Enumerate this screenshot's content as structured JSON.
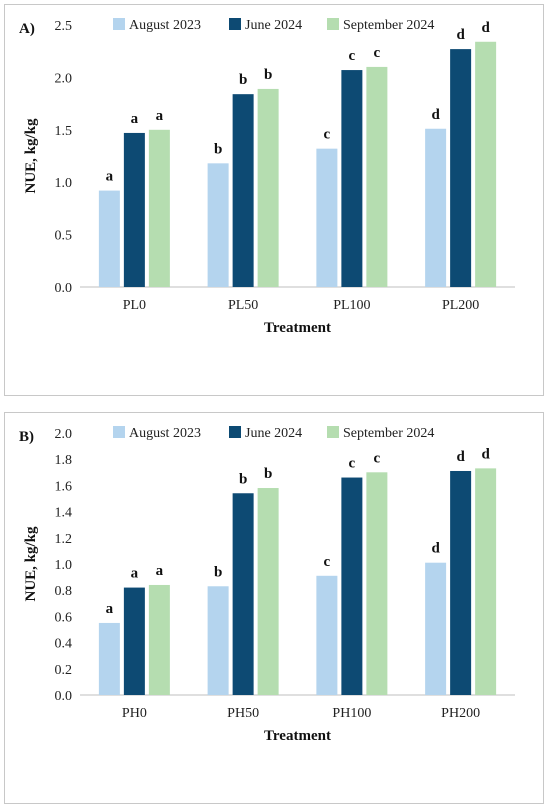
{
  "chart_data": [
    {
      "type": "bar",
      "panel_label": "A)",
      "categories": [
        "PL0",
        "PL50",
        "PL100",
        "PL200"
      ],
      "series": [
        {
          "name": "August 2023",
          "color": "#b4d4ee",
          "values": [
            0.92,
            1.18,
            1.32,
            1.51
          ],
          "letters": [
            "a",
            "b",
            "c",
            "d"
          ]
        },
        {
          "name": "June 2024",
          "color": "#0d4a73",
          "values": [
            1.47,
            1.84,
            2.07,
            2.27
          ],
          "letters": [
            "a",
            "b",
            "c",
            "d"
          ]
        },
        {
          "name": "September 2024",
          "color": "#b5ddb0",
          "values": [
            1.5,
            1.89,
            2.1,
            2.34
          ],
          "letters": [
            "a",
            "b",
            "c",
            "d"
          ]
        }
      ],
      "xlabel": "Treatment",
      "ylabel": "NUE, kg/kg",
      "ylim": [
        0,
        2.5
      ],
      "yticks": [
        0.0,
        0.5,
        1.0,
        1.5,
        2.0,
        2.5
      ],
      "ytick_labels": [
        "0.0",
        "0.5",
        "1.0",
        "1.5",
        "2.0",
        "2.5"
      ],
      "grid": false,
      "legend": "top"
    },
    {
      "type": "bar",
      "panel_label": "B)",
      "categories": [
        "PH0",
        "PH50",
        "PH100",
        "PH200"
      ],
      "series": [
        {
          "name": "August 2023",
          "color": "#b4d4ee",
          "values": [
            0.55,
            0.83,
            0.91,
            1.01
          ],
          "letters": [
            "a",
            "b",
            "c",
            "d"
          ]
        },
        {
          "name": "June 2024",
          "color": "#0d4a73",
          "values": [
            0.82,
            1.54,
            1.66,
            1.71
          ],
          "letters": [
            "a",
            "b",
            "c",
            "d"
          ]
        },
        {
          "name": "September 2024",
          "color": "#b5ddb0",
          "values": [
            0.84,
            1.58,
            1.7,
            1.73
          ],
          "letters": [
            "a",
            "b",
            "c",
            "d"
          ]
        }
      ],
      "xlabel": "Treatment",
      "ylabel": "NUE, kg/kg",
      "ylim": [
        0,
        2.0
      ],
      "yticks": [
        0.0,
        0.2,
        0.4,
        0.6,
        0.8,
        1.0,
        1.2,
        1.4,
        1.6,
        1.8,
        2.0
      ],
      "ytick_labels": [
        "0.0",
        "0.2",
        "0.4",
        "0.6",
        "0.8",
        "1.0",
        "1.2",
        "1.4",
        "1.6",
        "1.8",
        "2.0"
      ],
      "grid": false,
      "legend": "top"
    }
  ]
}
